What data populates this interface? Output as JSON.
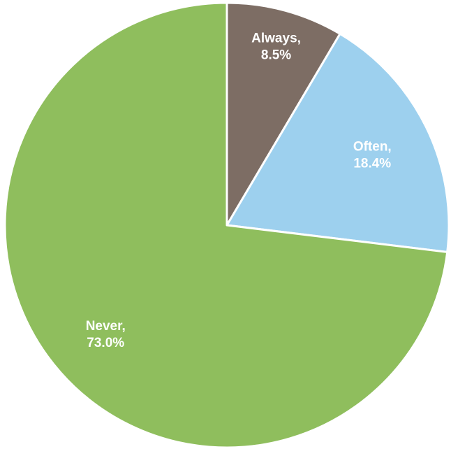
{
  "chart_data": {
    "type": "pie",
    "title": "",
    "start_angle_deg": 0,
    "direction": "clockwise",
    "slices": [
      {
        "label": "Always,",
        "value": 8.5,
        "value_label": "8.5%",
        "color": "#7d6d64"
      },
      {
        "label": "Often,",
        "value": 18.4,
        "value_label": "18.4%",
        "color": "#9dd0ee"
      },
      {
        "label": "Never,",
        "value": 73.0,
        "value_label": "73.0%",
        "color": "#8fbe5d"
      }
    ],
    "slice_border_color": "#ffffff",
    "legend": "none (labels inside slices)"
  }
}
